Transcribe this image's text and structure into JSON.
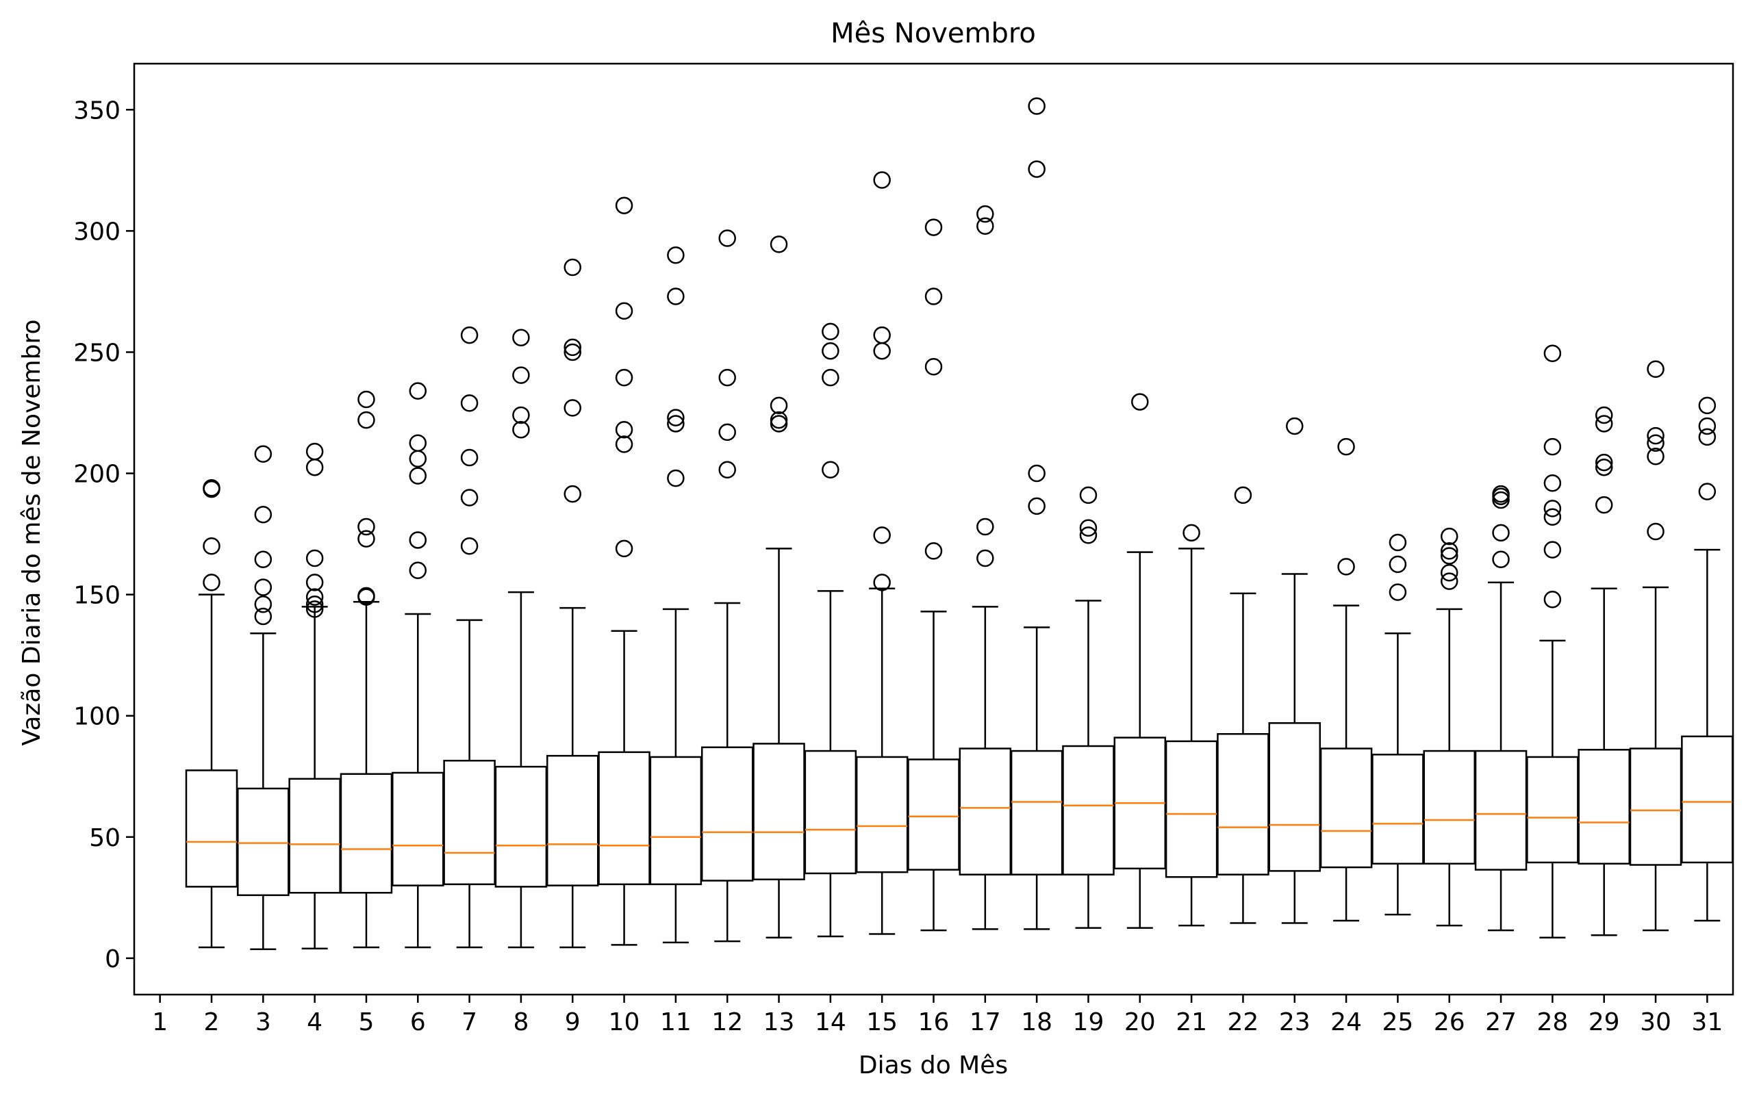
{
  "chart_data": {
    "type": "boxplot",
    "title": "Mês Novembro",
    "xlabel": "Dias do Mês",
    "ylabel": "Vazão Diaria do mês de Novembro",
    "ylim": [
      -15,
      369
    ],
    "xlim": [
      0.5,
      31.5
    ],
    "yticks": [
      0,
      50,
      100,
      150,
      200,
      250,
      300,
      350
    ],
    "grid": false,
    "box_color": "#000000",
    "median_color": "#ff7f0e",
    "categories": [
      "1",
      "2",
      "3",
      "4",
      "5",
      "6",
      "7",
      "8",
      "9",
      "10",
      "11",
      "12",
      "13",
      "14",
      "15",
      "16",
      "17",
      "18",
      "19",
      "20",
      "21",
      "22",
      "23",
      "24",
      "25",
      "26",
      "27",
      "28",
      "29",
      "30",
      "31"
    ],
    "boxes": [
      null,
      {
        "whislo": 4.5,
        "q1": 29.5,
        "med": 48,
        "q3": 77.5,
        "whishi": 150,
        "fliers": [
          155,
          170,
          193.5,
          194
        ]
      },
      {
        "whislo": 3.7,
        "q1": 26,
        "med": 47.5,
        "q3": 70,
        "whishi": 134,
        "fliers": [
          141,
          146,
          153,
          164.5,
          183,
          208
        ]
      },
      {
        "whislo": 4,
        "q1": 27,
        "med": 47,
        "q3": 74,
        "whishi": 145,
        "fliers": [
          144,
          146,
          149,
          155,
          165,
          202.5,
          209
        ]
      },
      {
        "whislo": 4.5,
        "q1": 27,
        "med": 45,
        "q3": 76,
        "whishi": 147,
        "fliers": [
          149,
          149.5,
          173,
          178,
          222,
          230.5
        ]
      },
      {
        "whislo": 4.5,
        "q1": 30,
        "med": 46.5,
        "q3": 76.5,
        "whishi": 142,
        "fliers": [
          160,
          172.5,
          199,
          206,
          212.5,
          234
        ]
      },
      {
        "whislo": 4.5,
        "q1": 30.5,
        "med": 43.5,
        "q3": 81.5,
        "whishi": 139.5,
        "fliers": [
          170,
          190,
          206.5,
          229,
          257
        ]
      },
      {
        "whislo": 4.5,
        "q1": 29.5,
        "med": 46.5,
        "q3": 79,
        "whishi": 151,
        "fliers": [
          218,
          224,
          240.5,
          256
        ]
      },
      {
        "whislo": 4.5,
        "q1": 30,
        "med": 47,
        "q3": 83.5,
        "whishi": 144.5,
        "fliers": [
          191.5,
          227,
          250,
          252,
          285
        ]
      },
      {
        "whislo": 5.5,
        "q1": 30.5,
        "med": 46.5,
        "q3": 85,
        "whishi": 135,
        "fliers": [
          169,
          212,
          218,
          239.5,
          267,
          310.5
        ]
      },
      {
        "whislo": 6.5,
        "q1": 30.5,
        "med": 50,
        "q3": 83,
        "whishi": 144,
        "fliers": [
          198,
          220.5,
          223,
          273,
          290
        ]
      },
      {
        "whislo": 7,
        "q1": 32,
        "med": 52,
        "q3": 87,
        "whishi": 146.5,
        "fliers": [
          201.5,
          217,
          239.5,
          297
        ]
      },
      {
        "whislo": 8.5,
        "q1": 32.5,
        "med": 52,
        "q3": 88.5,
        "whishi": 169,
        "fliers": [
          220.5,
          222,
          228,
          294.5
        ]
      },
      {
        "whislo": 9,
        "q1": 35,
        "med": 53,
        "q3": 85.5,
        "whishi": 151.5,
        "fliers": [
          201.5,
          239.5,
          250.5,
          258.5
        ]
      },
      {
        "whislo": 10,
        "q1": 35.5,
        "med": 54.5,
        "q3": 83,
        "whishi": 152.5,
        "fliers": [
          155,
          174.5,
          250.5,
          257,
          321
        ]
      },
      {
        "whislo": 11.5,
        "q1": 36.5,
        "med": 58.5,
        "q3": 82,
        "whishi": 143,
        "fliers": [
          168,
          244,
          273,
          301.5
        ]
      },
      {
        "whislo": 12,
        "q1": 34.5,
        "med": 62,
        "q3": 86.5,
        "whishi": 145,
        "fliers": [
          165,
          178,
          302,
          307
        ]
      },
      {
        "whislo": 12,
        "q1": 34.5,
        "med": 64.5,
        "q3": 85.5,
        "whishi": 136.5,
        "fliers": [
          186.5,
          200,
          325.5,
          351.5
        ]
      },
      {
        "whislo": 12.5,
        "q1": 34.5,
        "med": 63,
        "q3": 87.5,
        "whishi": 147.5,
        "fliers": [
          174.5,
          177.5,
          191
        ]
      },
      {
        "whislo": 12.5,
        "q1": 37,
        "med": 64,
        "q3": 91,
        "whishi": 167.5,
        "fliers": [
          229.5
        ]
      },
      {
        "whislo": 13.5,
        "q1": 33.5,
        "med": 59.5,
        "q3": 89.5,
        "whishi": 169,
        "fliers": [
          175.5
        ]
      },
      {
        "whislo": 14.5,
        "q1": 34.5,
        "med": 54,
        "q3": 92.5,
        "whishi": 150.5,
        "fliers": [
          191
        ]
      },
      {
        "whislo": 14.5,
        "q1": 36,
        "med": 55,
        "q3": 97,
        "whishi": 158.5,
        "fliers": [
          219.5
        ]
      },
      {
        "whislo": 15.5,
        "q1": 37.5,
        "med": 52.5,
        "q3": 86.5,
        "whishi": 145.5,
        "fliers": [
          161.5,
          211
        ]
      },
      {
        "whislo": 18,
        "q1": 39,
        "med": 55.5,
        "q3": 84,
        "whishi": 134,
        "fliers": [
          151,
          162.5,
          171.5
        ]
      },
      {
        "whislo": 13.5,
        "q1": 39,
        "med": 57,
        "q3": 85.5,
        "whishi": 144,
        "fliers": [
          155.5,
          159,
          166,
          168,
          174
        ]
      },
      {
        "whislo": 11.5,
        "q1": 36.5,
        "med": 59.5,
        "q3": 85.5,
        "whishi": 155,
        "fliers": [
          164.5,
          175.5,
          189,
          190.5,
          191.5
        ]
      },
      {
        "whislo": 8.5,
        "q1": 39.5,
        "med": 58,
        "q3": 83,
        "whishi": 131,
        "fliers": [
          148,
          168.5,
          182,
          185.5,
          196,
          211,
          249.5
        ]
      },
      {
        "whislo": 9.5,
        "q1": 39,
        "med": 56,
        "q3": 86,
        "whishi": 152.5,
        "fliers": [
          187,
          202.5,
          204.5,
          220.5,
          224
        ]
      },
      {
        "whislo": 11.5,
        "q1": 38.5,
        "med": 61,
        "q3": 86.5,
        "whishi": 153,
        "fliers": [
          176,
          207,
          212.5,
          215.5,
          243
        ]
      },
      {
        "whislo": 15.5,
        "q1": 39.5,
        "med": 64.5,
        "q3": 91.5,
        "whishi": 168.5,
        "fliers": [
          192.5,
          215,
          219.5,
          228
        ]
      }
    ]
  }
}
